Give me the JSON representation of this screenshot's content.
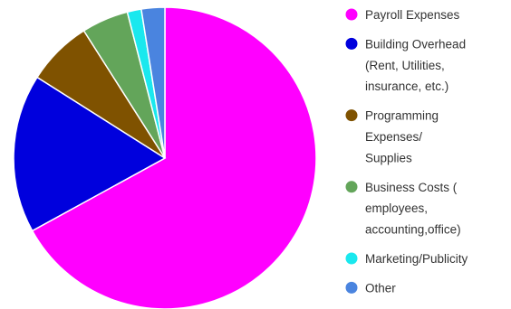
{
  "chart_data": {
    "type": "pie",
    "title": "",
    "slices": [
      {
        "label": "Payroll Expenses",
        "value": 67.0,
        "color": "#ff00ff",
        "legend_lines": [
          "Payroll Expenses"
        ]
      },
      {
        "label": "Building Overhead (Rent, Utilities, insurance, etc.)",
        "value": 17.0,
        "color": "#0000dd",
        "legend_lines": [
          "Building Overhead",
          "(Rent, Utilities,",
          "insurance, etc.)"
        ]
      },
      {
        "label": "Programming Expenses/ Supplies",
        "value": 7.0,
        "color": "#7f5200",
        "legend_lines": [
          "Programming",
          "Expenses/",
          "Supplies"
        ]
      },
      {
        "label": "Business Costs ( employees, accounting,office)",
        "value": 5.0,
        "color": "#63a55a",
        "legend_lines": [
          "Business Costs (",
          "employees,",
          "accounting,office)"
        ]
      },
      {
        "label": "Marketing/Publicity",
        "value": 1.5,
        "color": "#1ae8ee",
        "legend_lines": [
          "Marketing/Publicity"
        ]
      },
      {
        "label": "Other",
        "value": 2.5,
        "color": "#4a84df",
        "legend_lines": [
          "Other"
        ]
      }
    ],
    "legend_position": "right"
  }
}
